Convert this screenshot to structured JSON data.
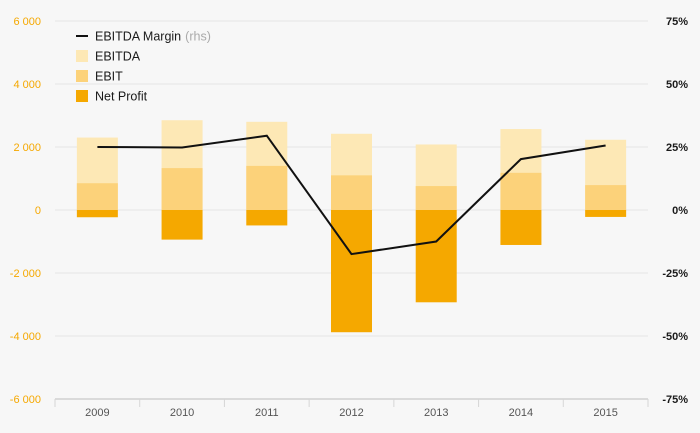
{
  "chart_data": {
    "type": "bar",
    "categories": [
      "2009",
      "2010",
      "2011",
      "2012",
      "2013",
      "2014",
      "2015"
    ],
    "series": [
      {
        "name": "EBITDA",
        "axis": "left",
        "color": "#fde8b5",
        "values": [
          2300,
          2850,
          2800,
          2420,
          2080,
          2570,
          2230
        ]
      },
      {
        "name": "EBIT",
        "axis": "left",
        "color": "#fcd27a",
        "values": [
          850,
          1330,
          1400,
          1100,
          760,
          1180,
          790
        ]
      },
      {
        "name": "Net Profit",
        "axis": "left",
        "color": "#f5a800",
        "values": [
          -230,
          -940,
          -490,
          -3880,
          -2930,
          -1110,
          -220
        ]
      },
      {
        "name": "EBITDA Margin",
        "axis": "right",
        "type": "line",
        "color": "#111111",
        "values": [
          25,
          24.8,
          29.5,
          -17.5,
          -12.5,
          20.2,
          25.6
        ]
      }
    ],
    "y_left": {
      "ticks": [
        "6 000",
        "4 000",
        "2 000",
        "0",
        "-2 000",
        "-4 000",
        "-6 000"
      ],
      "ylim": [
        -6000,
        6000
      ]
    },
    "y_right": {
      "ticks": [
        "75%",
        "50%",
        "25%",
        "0%",
        "-25%",
        "-50%",
        "-75%"
      ],
      "ylim": [
        -75,
        75
      ]
    },
    "legend": {
      "position": "top-left",
      "items": [
        {
          "label": "EBITDA Margin",
          "suffix": "(rhs)",
          "symbol": "line",
          "color": "#111111"
        },
        {
          "label": "EBITDA",
          "symbol": "box",
          "color": "#fde8b5"
        },
        {
          "label": "EBIT",
          "symbol": "box",
          "color": "#fcd27a"
        },
        {
          "label": "Net Profit",
          "symbol": "box",
          "color": "#f5a800"
        }
      ]
    },
    "grid": true
  }
}
